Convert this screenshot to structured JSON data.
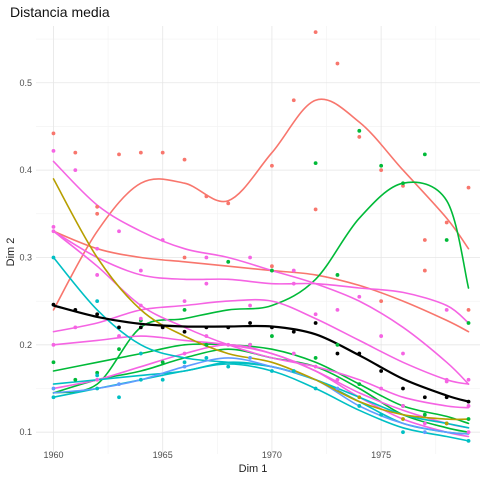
{
  "chart_data": {
    "type": "line",
    "title": "Distancia media",
    "xlabel": "Dim 1",
    "ylabel": "Dim 2",
    "xlim": [
      1959.2,
      1979.8
    ],
    "ylim": [
      0.075,
      0.565
    ],
    "x_ticks": [
      1960,
      1965,
      1970,
      1975
    ],
    "y_ticks": [
      0.1,
      0.2,
      0.3,
      0.4,
      0.5
    ],
    "x_tick_labels": [
      "1960",
      "1965",
      "1970",
      "1975"
    ],
    "y_tick_labels": [
      "0.1",
      "0.2",
      "0.3",
      "0.4",
      "0.5"
    ],
    "grid": true,
    "legend": "none",
    "x": [
      1960,
      1962,
      1964,
      1966,
      1968,
      1970,
      1972,
      1974,
      1976,
      1978,
      1979
    ],
    "series": [
      {
        "color": "#f8766d",
        "values": [
          0.24,
          0.33,
          0.385,
          0.385,
          0.365,
          0.42,
          0.48,
          0.455,
          0.4,
          0.345,
          0.31
        ],
        "points": [
          [
            1960,
            0.442
          ],
          [
            1961,
            0.42
          ],
          [
            1962,
            0.35
          ],
          [
            1963,
            0.418
          ],
          [
            1964,
            0.42
          ],
          [
            1965,
            0.42
          ],
          [
            1966,
            0.412
          ],
          [
            1967,
            0.37
          ],
          [
            1968,
            0.362
          ],
          [
            1970,
            0.405
          ],
          [
            1971,
            0.48
          ],
          [
            1972,
            0.558
          ],
          [
            1973,
            0.522
          ],
          [
            1974,
            0.438
          ],
          [
            1975,
            0.4
          ],
          [
            1976,
            0.382
          ],
          [
            1977,
            0.32
          ],
          [
            1978,
            0.34
          ],
          [
            1979,
            0.38
          ]
        ]
      },
      {
        "color": "#f8766d",
        "values": [
          0.33,
          0.31,
          0.3,
          0.295,
          0.29,
          0.285,
          0.28,
          0.268,
          0.25,
          0.228,
          0.215
        ],
        "points": [
          [
            1962,
            0.358
          ],
          [
            1966,
            0.3
          ],
          [
            1970,
            0.29
          ],
          [
            1972,
            0.355
          ],
          [
            1975,
            0.25
          ],
          [
            1977,
            0.285
          ],
          [
            1979,
            0.24
          ]
        ]
      },
      {
        "color": "#00ba38",
        "values": [
          0.145,
          0.155,
          0.22,
          0.23,
          0.24,
          0.245,
          0.275,
          0.345,
          0.385,
          0.365,
          0.265
        ],
        "points": [
          [
            1962,
            0.168
          ],
          [
            1964,
            0.228
          ],
          [
            1966,
            0.24
          ],
          [
            1968,
            0.295
          ],
          [
            1970,
            0.285
          ],
          [
            1972,
            0.408
          ],
          [
            1973,
            0.28
          ],
          [
            1974,
            0.445
          ],
          [
            1975,
            0.405
          ],
          [
            1976,
            0.385
          ],
          [
            1977,
            0.418
          ],
          [
            1978,
            0.32
          ],
          [
            1979,
            0.225
          ]
        ]
      },
      {
        "color": "#00ba38",
        "values": [
          0.17,
          0.18,
          0.19,
          0.2,
          0.2,
          0.195,
          0.18,
          0.155,
          0.13,
          0.118,
          0.11
        ],
        "points": [
          [
            1960,
            0.18
          ],
          [
            1963,
            0.195
          ],
          [
            1967,
            0.2
          ],
          [
            1970,
            0.21
          ],
          [
            1973,
            0.2
          ],
          [
            1976,
            0.13
          ],
          [
            1979,
            0.115
          ]
        ]
      },
      {
        "color": "#00ba38",
        "values": [
          0.145,
          0.16,
          0.17,
          0.185,
          0.195,
          0.185,
          0.175,
          0.15,
          0.12,
          0.105,
          0.1
        ],
        "points": [
          [
            1961,
            0.16
          ],
          [
            1965,
            0.18
          ],
          [
            1969,
            0.2
          ],
          [
            1972,
            0.185
          ],
          [
            1974,
            0.155
          ],
          [
            1977,
            0.12
          ]
        ]
      },
      {
        "color": "#f564e3",
        "values": [
          0.41,
          0.36,
          0.33,
          0.31,
          0.3,
          0.285,
          0.27,
          0.25,
          0.22,
          0.18,
          0.155
        ],
        "points": [
          [
            1960,
            0.422
          ],
          [
            1961,
            0.4
          ],
          [
            1963,
            0.33
          ],
          [
            1965,
            0.32
          ],
          [
            1967,
            0.3
          ],
          [
            1969,
            0.3
          ],
          [
            1971,
            0.27
          ],
          [
            1973,
            0.24
          ],
          [
            1975,
            0.21
          ],
          [
            1978,
            0.16
          ],
          [
            1979,
            0.16
          ]
        ]
      },
      {
        "color": "#f564e3",
        "values": [
          0.33,
          0.3,
          0.28,
          0.275,
          0.275,
          0.27,
          0.27,
          0.265,
          0.26,
          0.245,
          0.225
        ],
        "points": [
          [
            1960,
            0.335
          ],
          [
            1962,
            0.31
          ],
          [
            1964,
            0.285
          ],
          [
            1967,
            0.27
          ],
          [
            1971,
            0.285
          ],
          [
            1974,
            0.255
          ],
          [
            1978,
            0.24
          ]
        ]
      },
      {
        "color": "#f564e3",
        "values": [
          0.33,
          0.29,
          0.245,
          0.22,
          0.2,
          0.185,
          0.175,
          0.16,
          0.14,
          0.13,
          0.128
        ],
        "points": [
          [
            1960,
            0.33
          ],
          [
            1962,
            0.28
          ],
          [
            1964,
            0.23
          ],
          [
            1967,
            0.21
          ],
          [
            1971,
            0.19
          ],
          [
            1975,
            0.15
          ],
          [
            1979,
            0.13
          ]
        ]
      },
      {
        "color": "#f564e3",
        "values": [
          0.215,
          0.225,
          0.24,
          0.245,
          0.25,
          0.25,
          0.23,
          0.205,
          0.18,
          0.16,
          0.155
        ],
        "points": [
          [
            1961,
            0.22
          ],
          [
            1964,
            0.245
          ],
          [
            1966,
            0.25
          ],
          [
            1969,
            0.245
          ],
          [
            1972,
            0.235
          ],
          [
            1976,
            0.19
          ],
          [
            1978,
            0.158
          ]
        ]
      },
      {
        "color": "#f564e3",
        "values": [
          0.2,
          0.205,
          0.21,
          0.205,
          0.2,
          0.19,
          0.17,
          0.145,
          0.125,
          0.11,
          0.105
        ],
        "points": [
          [
            1960,
            0.2
          ],
          [
            1963,
            0.21
          ],
          [
            1968,
            0.2
          ],
          [
            1972,
            0.175
          ],
          [
            1976,
            0.13
          ],
          [
            1979,
            0.1
          ]
        ]
      },
      {
        "color": "#f564e3",
        "values": [
          0.15,
          0.16,
          0.175,
          0.19,
          0.2,
          0.19,
          0.17,
          0.14,
          0.115,
          0.1,
          0.095
        ],
        "points": [
          [
            1962,
            0.16
          ],
          [
            1966,
            0.19
          ],
          [
            1969,
            0.2
          ],
          [
            1973,
            0.16
          ],
          [
            1977,
            0.11
          ]
        ]
      },
      {
        "color": "#00bfc4",
        "values": [
          0.3,
          0.24,
          0.2,
          0.185,
          0.18,
          0.175,
          0.16,
          0.14,
          0.12,
          0.11,
          0.105
        ],
        "points": [
          [
            1960,
            0.3
          ],
          [
            1962,
            0.25
          ],
          [
            1964,
            0.19
          ],
          [
            1966,
            0.18
          ],
          [
            1970,
            0.17
          ],
          [
            1974,
            0.13
          ],
          [
            1978,
            0.11
          ]
        ]
      },
      {
        "color": "#00bfc4",
        "values": [
          0.14,
          0.15,
          0.16,
          0.17,
          0.178,
          0.17,
          0.15,
          0.125,
          0.105,
          0.095,
          0.09
        ],
        "points": [
          [
            1960,
            0.14
          ],
          [
            1962,
            0.15
          ],
          [
            1963,
            0.14
          ],
          [
            1965,
            0.16
          ],
          [
            1968,
            0.175
          ],
          [
            1972,
            0.15
          ],
          [
            1976,
            0.1
          ],
          [
            1979,
            0.09
          ]
        ]
      },
      {
        "color": "#00bfc4",
        "values": [
          0.155,
          0.16,
          0.165,
          0.17,
          0.18,
          0.175,
          0.16,
          0.135,
          0.11,
          0.1,
          0.098
        ],
        "points": [
          [
            1962,
            0.165
          ],
          [
            1964,
            0.16
          ],
          [
            1967,
            0.185
          ],
          [
            1971,
            0.17
          ],
          [
            1975,
            0.12
          ]
        ]
      },
      {
        "color": "#619cff",
        "values": [
          0.145,
          0.15,
          0.16,
          0.175,
          0.185,
          0.175,
          0.16,
          0.13,
          0.11,
          0.1,
          0.098
        ],
        "points": [
          [
            1960,
            0.15
          ],
          [
            1963,
            0.155
          ],
          [
            1966,
            0.175
          ],
          [
            1969,
            0.185
          ],
          [
            1973,
            0.15
          ],
          [
            1977,
            0.1
          ]
        ]
      },
      {
        "color": "#b79f00",
        "values": [
          0.39,
          0.3,
          0.24,
          0.21,
          0.19,
          0.18,
          0.16,
          0.135,
          0.12,
          0.115,
          0.115
        ],
        "points": [
          [
            1974,
            0.14
          ],
          [
            1976,
            0.115
          ],
          [
            1978,
            0.11
          ]
        ]
      },
      {
        "color": "#000000",
        "values": [
          0.245,
          0.232,
          0.224,
          0.221,
          0.221,
          0.221,
          0.212,
          0.188,
          0.161,
          0.142,
          0.135
        ],
        "points": [
          [
            1960,
            0.246
          ],
          [
            1961,
            0.24
          ],
          [
            1962,
            0.235
          ],
          [
            1963,
            0.22
          ],
          [
            1964,
            0.22
          ],
          [
            1965,
            0.22
          ],
          [
            1966,
            0.215
          ],
          [
            1967,
            0.22
          ],
          [
            1968,
            0.22
          ],
          [
            1969,
            0.225
          ],
          [
            1970,
            0.22
          ],
          [
            1971,
            0.215
          ],
          [
            1972,
            0.225
          ],
          [
            1973,
            0.19
          ],
          [
            1974,
            0.19
          ],
          [
            1975,
            0.17
          ],
          [
            1976,
            0.15
          ],
          [
            1977,
            0.14
          ],
          [
            1978,
            0.14
          ],
          [
            1979,
            0.135
          ]
        ]
      }
    ]
  }
}
